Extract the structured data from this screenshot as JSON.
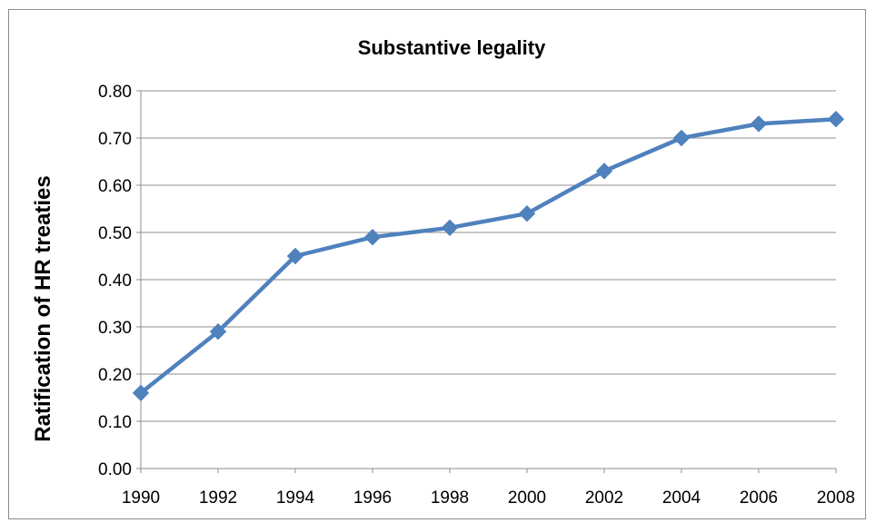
{
  "chart_data": {
    "type": "line",
    "title": "Substantive legality",
    "xlabel": "",
    "ylabel": "Ratification of HR treaties",
    "x": [
      "1990",
      "1992",
      "1994",
      "1996",
      "1998",
      "2000",
      "2002",
      "2004",
      "2006",
      "2008"
    ],
    "series": [
      {
        "values": [
          0.16,
          0.29,
          0.45,
          0.49,
          0.51,
          0.54,
          0.63,
          0.7,
          0.73,
          0.74
        ],
        "color": "#4F81BD",
        "marker": "diamond"
      }
    ],
    "ylim": [
      0,
      0.8
    ],
    "yticks": [
      "0.00",
      "0.10",
      "0.20",
      "0.30",
      "0.40",
      "0.50",
      "0.60",
      "0.70",
      "0.80"
    ],
    "grid": true,
    "legend": "none"
  }
}
